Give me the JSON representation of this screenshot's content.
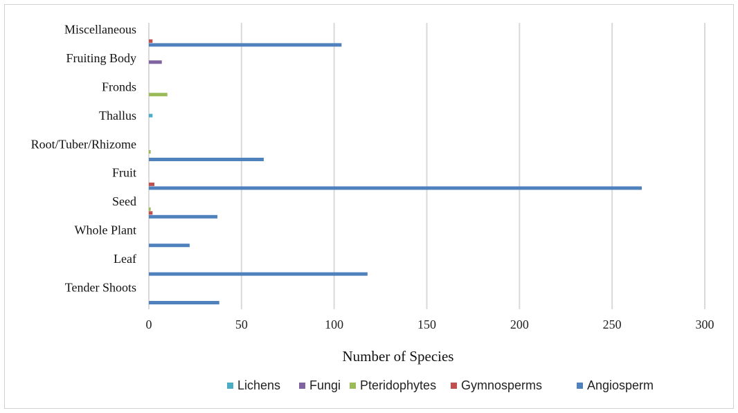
{
  "chart_data": {
    "type": "bar",
    "orientation": "horizontal",
    "categories": [
      "Tender Shoots",
      "Leaf",
      "Whole Plant",
      "Seed",
      "Fruit",
      "Root/Tuber/Rhizome",
      "Thallus",
      "Fronds",
      "Fruiting Body",
      "Miscellaneous"
    ],
    "series": [
      {
        "name": "Lichens",
        "color": "#4bacc6",
        "values": [
          0,
          0,
          0,
          0,
          0,
          0,
          2,
          0,
          0,
          0
        ]
      },
      {
        "name": "Fungi",
        "color": "#8064a2",
        "values": [
          0,
          0,
          0,
          0,
          0,
          0,
          0,
          0,
          7,
          0
        ]
      },
      {
        "name": "Pteridophytes",
        "color": "#9bbb59",
        "values": [
          0,
          0,
          0,
          1,
          0,
          1,
          0,
          10,
          0,
          0
        ]
      },
      {
        "name": "Gymnosperms",
        "color": "#c0504d",
        "values": [
          0,
          0,
          0,
          2,
          3,
          0,
          0,
          0,
          0,
          2
        ]
      },
      {
        "name": "Angiosperm",
        "color": "#4f81bd",
        "values": [
          38,
          118,
          22,
          37,
          266,
          62,
          0,
          0,
          0,
          104
        ]
      }
    ],
    "title": "",
    "xlabel": "Number of Species",
    "ylabel": "",
    "xlim": [
      0,
      300
    ],
    "xticks": [
      0,
      50,
      100,
      150,
      200,
      250,
      300
    ],
    "grid": "vertical",
    "legend_position": "bottom"
  }
}
